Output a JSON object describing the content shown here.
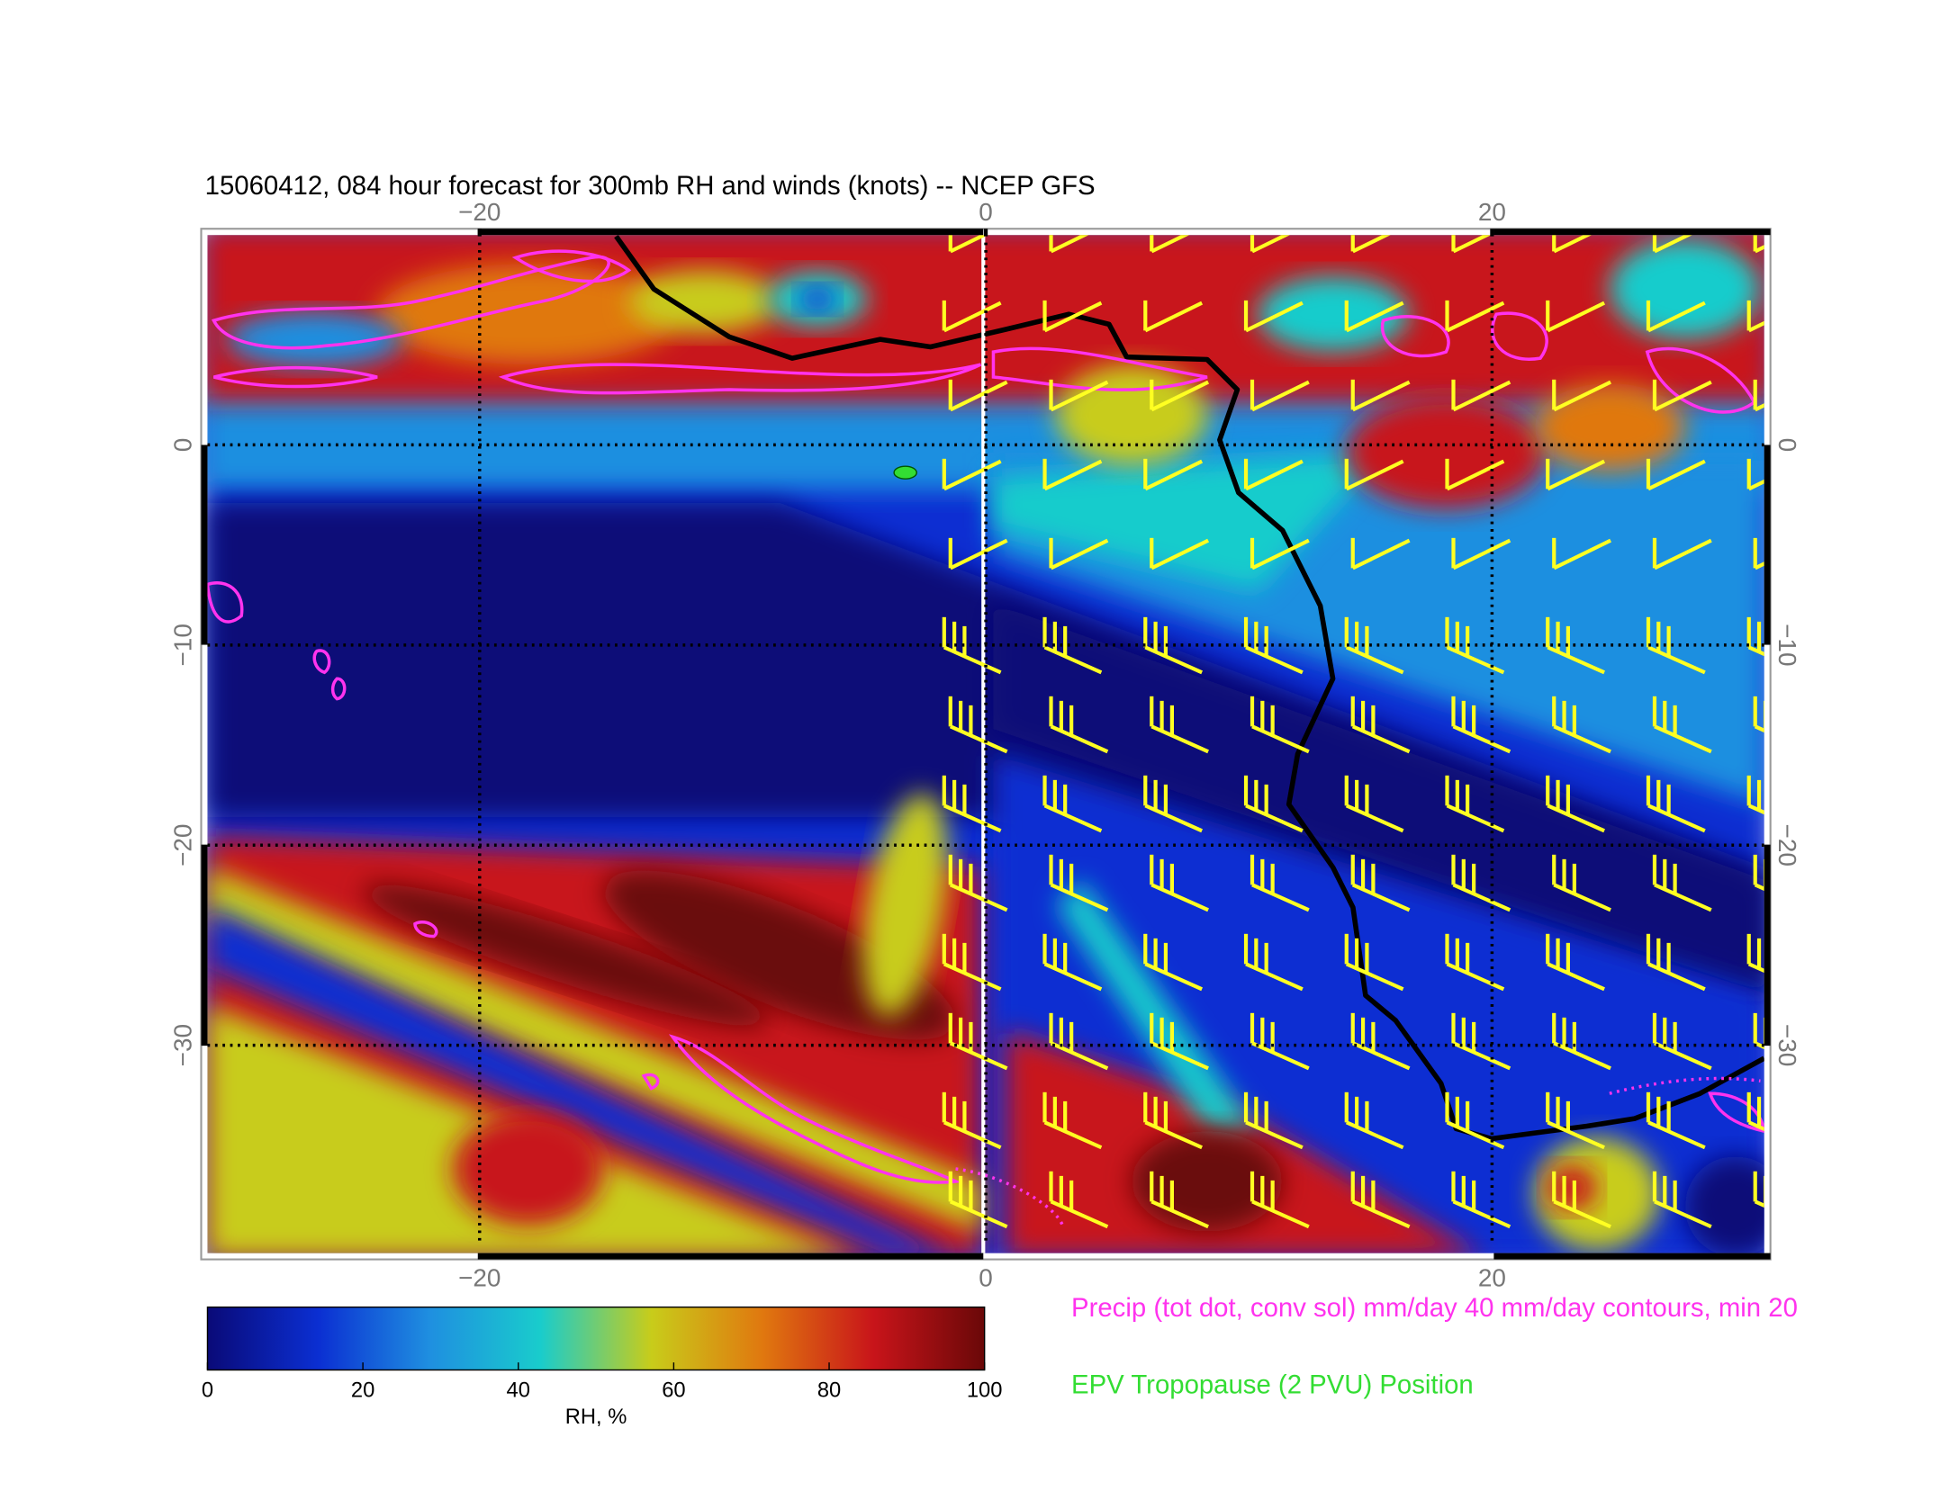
{
  "title": "15060412, 084 hour forecast for 300mb RH and winds (knots) -- NCEP GFS",
  "map": {
    "xlim": [
      -31,
      31
    ],
    "ylim": [
      -40.7,
      10.8
    ],
    "xticks": [
      {
        "value": -20,
        "label": "−20"
      },
      0,
      20
    ],
    "yticks": [
      0,
      {
        "value": -10,
        "label": "−10"
      },
      {
        "value": -20,
        "label": "−20"
      },
      {
        "value": -30,
        "label": "−30"
      }
    ],
    "grid": true
  },
  "colorbar": {
    "label": "RH, %",
    "lim": [
      0,
      100
    ],
    "ticks": [
      0,
      20,
      40,
      60,
      80,
      100
    ],
    "colors": [
      "#0a0a78",
      "#0b2fd2",
      "#1f8fe0",
      "#19cccc",
      "#c8cc1a",
      "#e0780f",
      "#c8141a",
      "#6a0808"
    ]
  },
  "legend": [
    {
      "text": "Precip (tot dot, conv sol) mm/day 40 mm/day contours, min 20",
      "color": "#ff33ee"
    },
    {
      "text": "EPV Tropopause (2 PVU) Position",
      "color": "#33dd33"
    }
  ]
}
